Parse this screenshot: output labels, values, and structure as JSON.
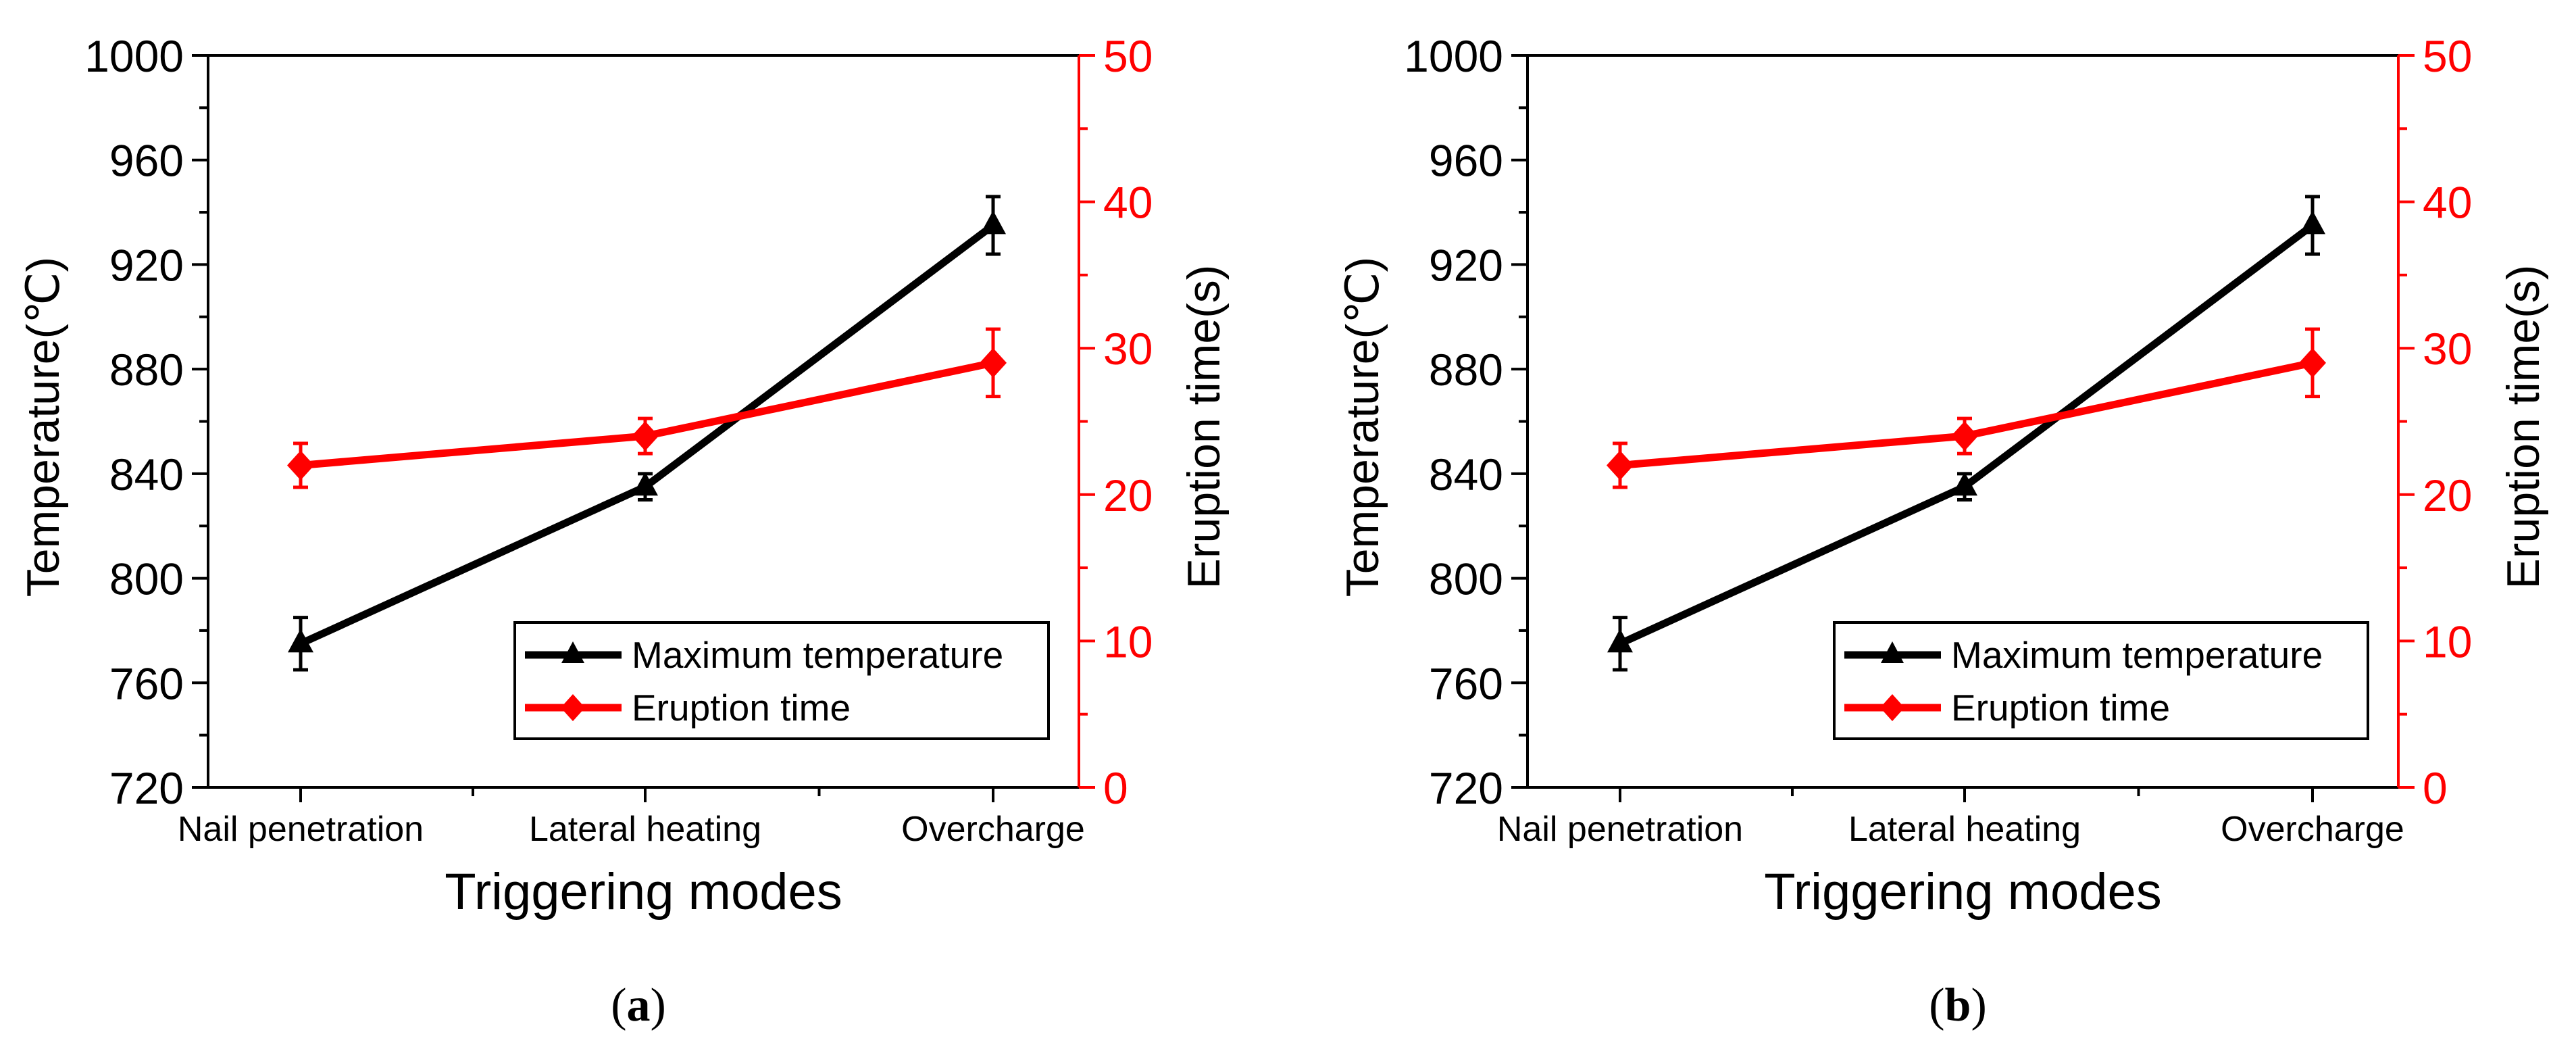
{
  "chart_data": [
    {
      "panel": "a",
      "type": "line",
      "caption_open": "(",
      "caption_letter": "a",
      "caption_close": ")",
      "xlabel": "Triggering modes",
      "ylabel_left": "Temperature(℃)",
      "ylabel_right": "Eruption time(s)",
      "categories": [
        "Nail penetration",
        "Lateral heating",
        "Overcharge"
      ],
      "ylim_left": [
        720,
        1000
      ],
      "yticks_left": [
        "720",
        "760",
        "800",
        "840",
        "880",
        "920",
        "960",
        "1000"
      ],
      "ylim_right": [
        0,
        50
      ],
      "yticks_right": [
        "0",
        "10",
        "20",
        "30",
        "40",
        "50"
      ],
      "legend": [
        "Maximum temperature",
        "Eruption time"
      ],
      "legend_position": "bottom-right",
      "series": [
        {
          "name": "Maximum temperature",
          "axis": "left",
          "color": "#000000",
          "marker": "triangle",
          "values": [
            775,
            835,
            935
          ],
          "errors": [
            10,
            5,
            11
          ]
        },
        {
          "name": "Eruption time",
          "axis": "right",
          "color": "#ff0000",
          "marker": "diamond",
          "values": [
            22,
            24,
            29
          ],
          "errors": [
            1.5,
            1.2,
            2.3
          ]
        }
      ]
    },
    {
      "panel": "b",
      "type": "line",
      "caption_open": "(",
      "caption_letter": "b",
      "caption_close": ")",
      "xlabel": "Triggering modes",
      "ylabel_left": "Temperature(℃)",
      "ylabel_right": "Eruption time(s)",
      "categories": [
        "Nail penetration",
        "Lateral heating",
        "Overcharge"
      ],
      "ylim_left": [
        720,
        1000
      ],
      "yticks_left": [
        "720",
        "760",
        "800",
        "840",
        "880",
        "920",
        "960",
        "1000"
      ],
      "ylim_right": [
        0,
        50
      ],
      "yticks_right": [
        "0",
        "10",
        "20",
        "30",
        "40",
        "50"
      ],
      "legend": [
        "Maximum temperature",
        "Eruption time"
      ],
      "legend_position": "bottom-right",
      "series": [
        {
          "name": "Maximum temperature",
          "axis": "left",
          "color": "#000000",
          "marker": "triangle",
          "values": [
            775,
            835,
            935
          ],
          "errors": [
            10,
            5,
            11
          ]
        },
        {
          "name": "Eruption time",
          "axis": "right",
          "color": "#ff0000",
          "marker": "diamond",
          "values": [
            22,
            24,
            29
          ],
          "errors": [
            1.5,
            1.2,
            2.3
          ]
        }
      ]
    }
  ]
}
